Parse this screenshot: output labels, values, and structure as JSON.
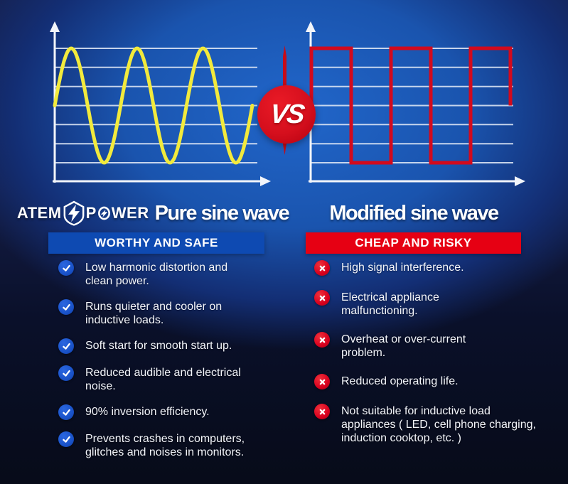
{
  "vs": {
    "label": "VS"
  },
  "brand": {
    "word1": "ATEM",
    "word2_p": "P",
    "word2_rest": "WER"
  },
  "left_panel": {
    "title": "Pure sine wave",
    "banner": "WORTHY AND SAFE",
    "items": [
      {
        "text": "Low harmonic distortion and\nclean power."
      },
      {
        "text": "Runs quieter and cooler on\ninductive loads."
      },
      {
        "text": "Soft start for smooth start up."
      },
      {
        "text": "Reduced audible and electrical\nnoise."
      },
      {
        "text": "90% inversion efficiency."
      },
      {
        "text": "Prevents crashes in computers,\nglitches and noises in monitors."
      }
    ]
  },
  "right_panel": {
    "title": "Modified sine wave",
    "banner": "CHEAP AND RISKY",
    "items": [
      {
        "text": "High signal interference."
      },
      {
        "text": "Electrical appliance\nmalfunctioning."
      },
      {
        "text": "Overheat or over-current\nproblem."
      },
      {
        "text": "Reduced operating life."
      },
      {
        "text": "Not suitable for inductive load\nappliances ( LED, cell phone charging,\ninduction cooktop, etc. )"
      }
    ]
  },
  "colors": {
    "banner_blue": "#0e4ab2",
    "banner_red": "#e60013",
    "sine_yellow": "#f2ea3c",
    "square_red": "#d20a1d",
    "vs_red": "#d50f1d",
    "check_circle_blue": "#1a53c9",
    "cross_circle_red": "#d8001e",
    "background_blue": "#1a54ae"
  },
  "chart_data": [
    {
      "type": "line",
      "title": "Pure sine wave",
      "waveform": "sine",
      "cycles": 3,
      "starts_at": "midline",
      "gridlines_horizontal": 7,
      "axes": "unlabeled x-y axes with arrowheads",
      "color": "#f2ea3c"
    },
    {
      "type": "line",
      "title": "Modified sine wave",
      "waveform": "square",
      "half_cycles": 5,
      "starts": "high",
      "ends": "high",
      "amplitude": "full grid height",
      "gridlines_horizontal": 7,
      "axes": "unlabeled x-y axes with arrowheads",
      "color": "#d20a1d"
    }
  ]
}
